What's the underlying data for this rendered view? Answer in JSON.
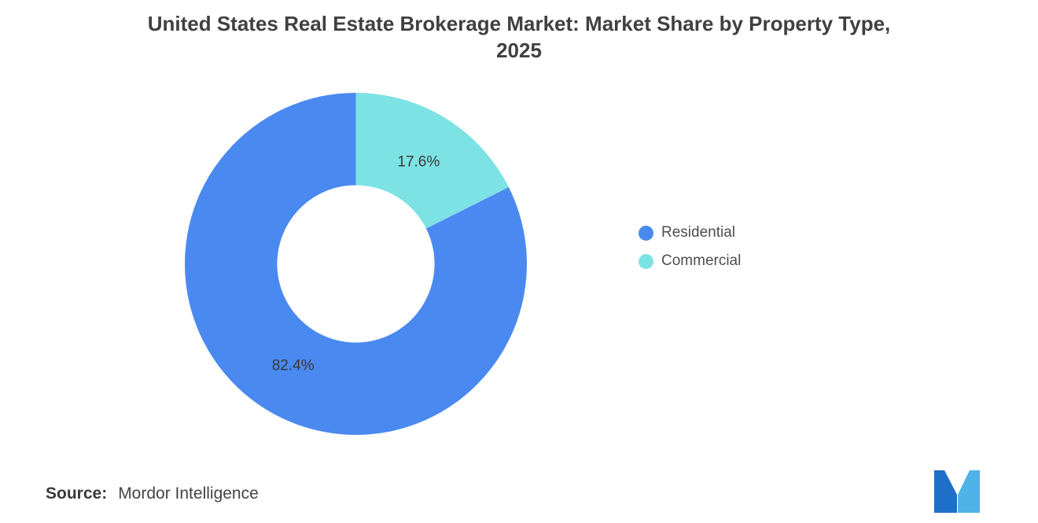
{
  "title_line1": "United States Real Estate Brokerage Market: Market Share by Property Type,",
  "title_line2": "2025",
  "source": {
    "label": "Source:",
    "value": "Mordor Intelligence"
  },
  "logo": {
    "name": "mordor-intelligence-logo",
    "color_dark": "#1E6FC8",
    "color_light": "#4FB3E8"
  },
  "chart_data": {
    "type": "pie",
    "subtype": "donut",
    "title": "United States Real Estate Brokerage Market: Market Share by Property Type, 2025",
    "unit": "%",
    "series": [
      {
        "name": "Residential",
        "value": 82.4,
        "label": "82.4%",
        "color": "#4A8AF0"
      },
      {
        "name": "Commercial",
        "value": 17.6,
        "label": "17.6%",
        "color": "#7DE2E4"
      }
    ],
    "legend_position": "right",
    "donut_hole_ratio": 0.46,
    "start_angle_deg": 0,
    "direction_note": "Commercial slice drawn clockwise from 12 o'clock"
  }
}
